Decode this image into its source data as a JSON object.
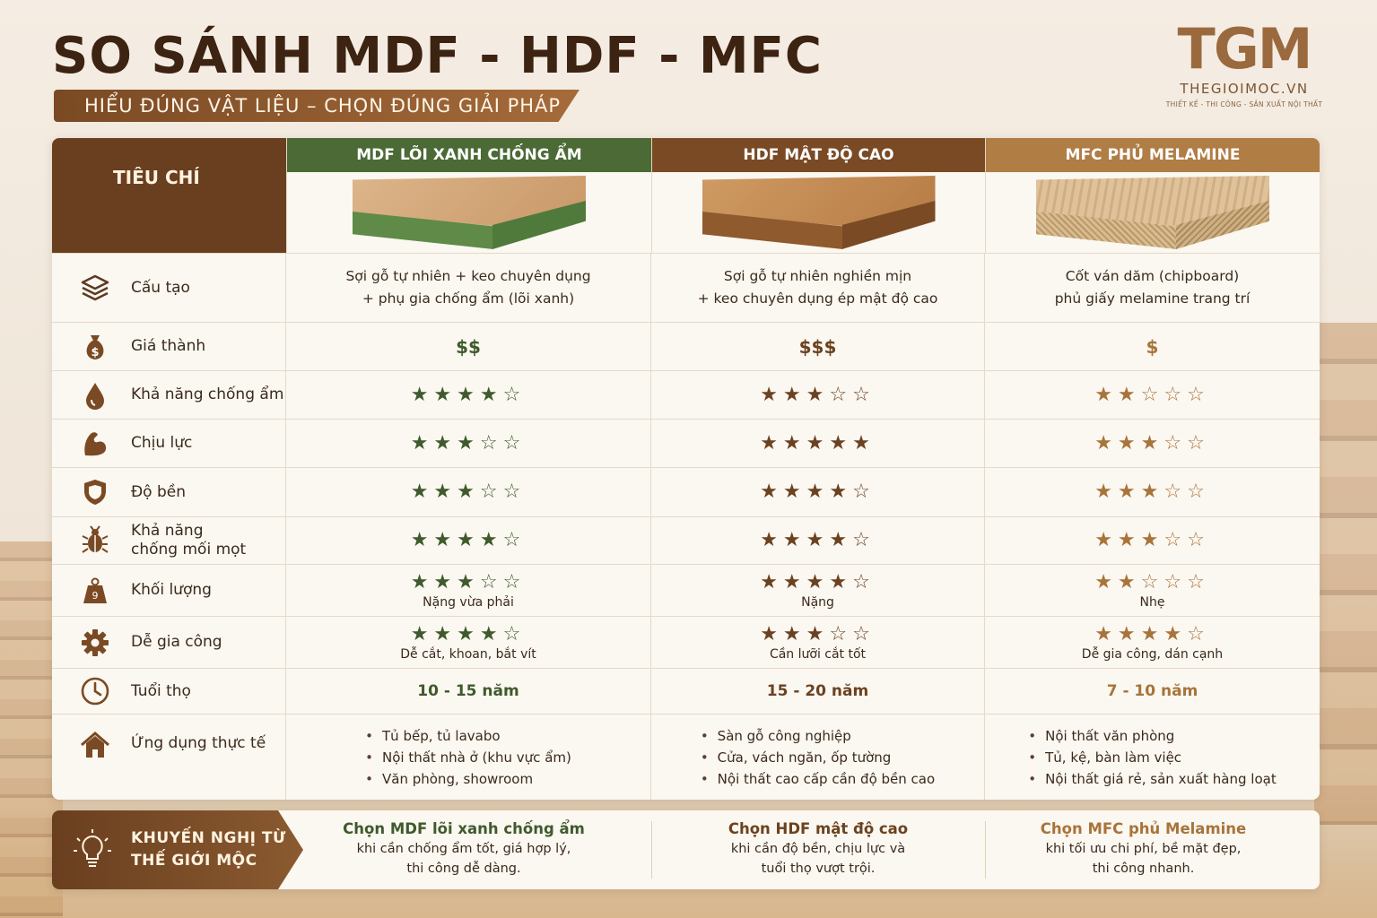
{
  "title": "SO SÁNH MDF - HDF - MFC",
  "subtitle": "HIỂU ĐÚNG VẬT LIỆU – CHỌN ĐÚNG GIẢI PHÁP",
  "logo": {
    "mark": "TGM",
    "site": "THEGIOIMOC.VN",
    "tagline": "THIẾT KẾ - THI CÔNG - SẢN XUẤT NỘI THẤT"
  },
  "header": {
    "criteria": "TIÊU CHÍ",
    "columns": [
      {
        "label": "MDF LÕI XANH CHỐNG ẨM",
        "color": "#4b6a35"
      },
      {
        "label": "HDF MẬT ĐỘ CAO",
        "color": "#7a4a24"
      },
      {
        "label": "MFC PHỦ MELAMINE",
        "color": "#b07d45"
      }
    ]
  },
  "rows": {
    "structure": {
      "label": "Cấu tạo",
      "icon": "layers-icon",
      "c1": [
        "Sợi gỗ tự nhiên + keo chuyên dụng",
        "+ phụ gia chống ẩm (lõi xanh)"
      ],
      "c2": [
        "Sợi gỗ tự nhiên nghiền mịn",
        "+ keo chuyên dụng ép mật độ cao"
      ],
      "c3": [
        "Cốt ván dăm (chipboard)",
        "phủ giấy melamine trang trí"
      ]
    },
    "price": {
      "label": "Giá thành",
      "icon": "money-bag-icon",
      "c1": "$$",
      "c2": "$$$",
      "c3": "$"
    },
    "moisture": {
      "label": "Khả năng chống ẩm",
      "icon": "water-drop-icon",
      "c1": 4,
      "c2": 3,
      "c3": 2
    },
    "strength": {
      "label": "Chịu lực",
      "icon": "muscle-arm-icon",
      "c1": 3,
      "c2": 5,
      "c3": 3
    },
    "durability": {
      "label": "Độ bền",
      "icon": "shield-icon",
      "c1": 3,
      "c2": 4,
      "c3": 3
    },
    "termite": {
      "label1": "Khả năng",
      "label2": "chống mối mọt",
      "icon": "bug-icon",
      "c1": 4,
      "c2": 4,
      "c3": 3
    },
    "weight": {
      "label": "Khối lượng",
      "icon": "weight-icon",
      "weight_mark": "9",
      "c1": 3,
      "c2": 4,
      "c3": 2,
      "n1": "Nặng vừa phải",
      "n2": "Nặng",
      "n3": "Nhẹ"
    },
    "workability": {
      "label": "Dễ gia công",
      "icon": "gear-icon",
      "c1": 4,
      "c2": 3,
      "c3": 4,
      "n1": "Dễ cắt, khoan, bắt vít",
      "n2": "Cần lưỡi cắt tốt",
      "n3": "Dễ gia công, dán cạnh"
    },
    "lifespan": {
      "label": "Tuổi thọ",
      "icon": "clock-icon",
      "c1": "10 - 15 năm",
      "c2": "15 - 20 năm",
      "c3": "7 - 10 năm"
    },
    "applications": {
      "label": "Ứng dụng thực tế",
      "icon": "house-icon",
      "c1": [
        "Tủ bếp, tủ lavabo",
        "Nội thất nhà ở (khu vực ẩm)",
        "Văn phòng, showroom"
      ],
      "c2": [
        "Sàn gỗ công nghiệp",
        "Cửa, vách ngăn, ốp tường",
        "Nội thất cao cấp cần độ bền cao"
      ],
      "c3": [
        "Nội thất văn phòng",
        "Tủ, kệ, bàn làm việc",
        "Nội thất giá rẻ, sản xuất hàng loạt"
      ]
    }
  },
  "recommend": {
    "tag1": "KHUYẾN NGHỊ TỪ",
    "tag2": "THẾ GIỚI MỘC",
    "c1": {
      "h": "Chọn MDF lõi xanh chống ẩm",
      "b1": "khi cần chống ẩm tốt, giá hợp lý,",
      "b2": "thi công dễ dàng."
    },
    "c2": {
      "h": "Chọn HDF mật độ cao",
      "b1": "khi cần độ bền, chịu lực và",
      "b2": "tuổi thọ vượt trội."
    },
    "c3": {
      "h": "Chọn MFC phủ Melamine",
      "b1": "khi tối ưu chi phí, bề mặt đẹp,",
      "b2": "thi công nhanh."
    }
  },
  "colors": {
    "green": "#3f5a2c",
    "brown": "#6b4220",
    "gold": "#a8743a"
  }
}
